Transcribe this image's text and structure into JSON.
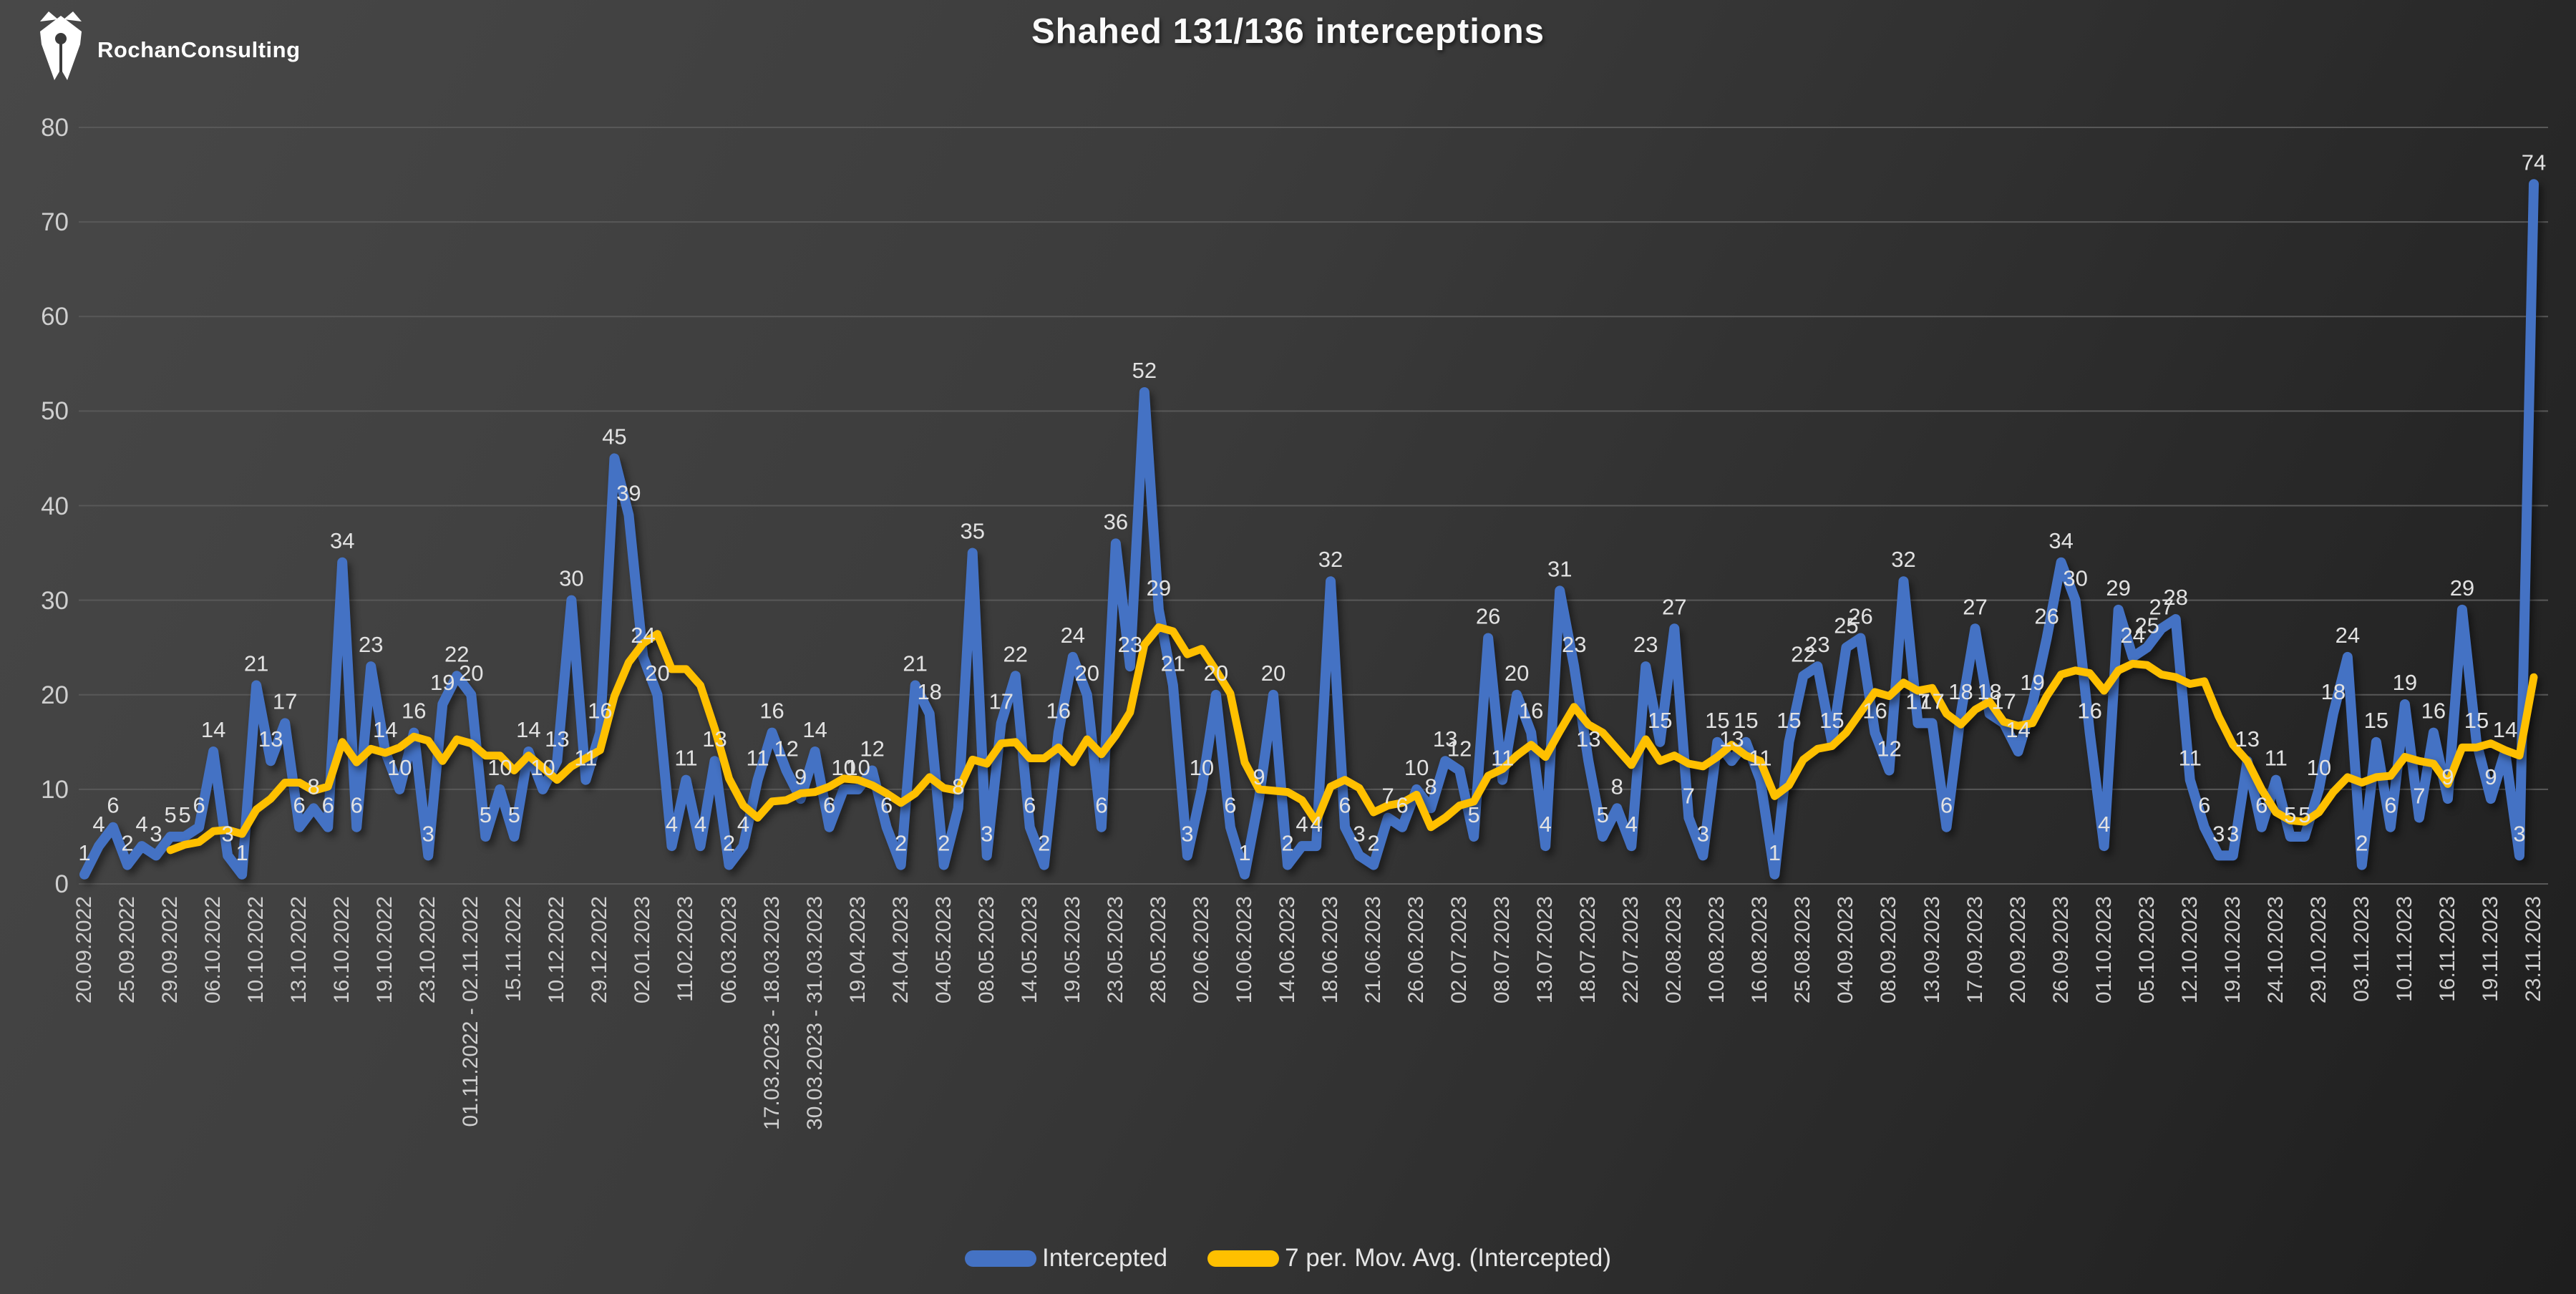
{
  "header": {
    "logo_text": "RochanConsulting",
    "title": "Shahed 131/136 interceptions"
  },
  "legend": [
    {
      "label": "Intercepted",
      "color": "#4472C4"
    },
    {
      "label": "7 per. Mov. Avg. (Intercepted)",
      "color": "#FFC000"
    }
  ],
  "chart_data": {
    "type": "line",
    "title": "Shahed 131/136 interceptions",
    "xlabel": "",
    "ylabel": "",
    "ylim": [
      0,
      80
    ],
    "y_ticks": [
      0,
      10,
      20,
      30,
      40,
      50,
      60,
      70,
      80
    ],
    "grid": true,
    "legend_position": "bottom",
    "x_tick_every": 3,
    "x_tick_labels": [
      "20.09.2022",
      "25.09.2022",
      "29.09.2022",
      "06.10.2022",
      "10.10.2022",
      "13.10.2022",
      "16.10.2022",
      "19.10.2022",
      "23.10.2022",
      "01.11.2022 - 02.11.2022",
      "15.11.2022",
      "10.12.2022",
      "29.12.2022",
      "02.01.2023",
      "11.02.2023",
      "06.03.2023",
      "17.03.2023 - 18.03.2023",
      "30.03.2023 - 31.03.2023",
      "19.04.2023",
      "24.04.2023",
      "04.05.2023",
      "08.05.2023",
      "14.05.2023",
      "19.05.2023",
      "23.05.2023",
      "28.05.2023",
      "02.06.2023",
      "10.06.2023",
      "14.06.2023",
      "18.06.2023",
      "21.06.2023",
      "26.06.2023",
      "02.07.2023",
      "08.07.2023",
      "13.07.2023",
      "18.07.2023",
      "22.07.2023",
      "02.08.2023",
      "10.08.2023",
      "16.08.2023",
      "25.08.2023",
      "04.09.2023",
      "08.09.2023",
      "13.09.2023",
      "17.09.2023",
      "20.09.2023",
      "26.09.2023",
      "01.10.2023",
      "05.10.2023",
      "12.10.2023",
      "19.10.2023",
      "24.10.2023",
      "29.10.2023",
      "03.11.2023",
      "10.11.2023",
      "16.11.2023",
      "19.11.2023",
      "23.11.2023"
    ],
    "series": [
      {
        "name": "Intercepted",
        "color": "#4472C4",
        "data_labels": true,
        "values": [
          1,
          4,
          6,
          2,
          4,
          3,
          5,
          5,
          6,
          14,
          3,
          1,
          21,
          13,
          17,
          6,
          8,
          6,
          34,
          6,
          23,
          14,
          10,
          16,
          3,
          19,
          22,
          20,
          5,
          10,
          5,
          14,
          10,
          13,
          30,
          11,
          16,
          45,
          39,
          24,
          20,
          4,
          11,
          4,
          13,
          2,
          4,
          11,
          16,
          12,
          9,
          14,
          6,
          10,
          10,
          12,
          6,
          2,
          21,
          18,
          2,
          8,
          35,
          3,
          17,
          22,
          6,
          2,
          16,
          24,
          20,
          6,
          36,
          23,
          52,
          29,
          21,
          3,
          10,
          20,
          6,
          1,
          9,
          20,
          2,
          4,
          4,
          32,
          6,
          3,
          2,
          7,
          6,
          10,
          8,
          13,
          12,
          5,
          26,
          11,
          20,
          16,
          4,
          31,
          23,
          13,
          5,
          8,
          4,
          23,
          15,
          27,
          7,
          3,
          15,
          13,
          15,
          11,
          1,
          15,
          22,
          23,
          15,
          25,
          26,
          16,
          12,
          32,
          17,
          17,
          6,
          18,
          27,
          18,
          17,
          14,
          19,
          26,
          34,
          30,
          16,
          4,
          29,
          24,
          25,
          27,
          28,
          11,
          6,
          3,
          3,
          13,
          6,
          11,
          5,
          5,
          10,
          18,
          24,
          2,
          15,
          6,
          19,
          7,
          16,
          9,
          29,
          15,
          9,
          14,
          3,
          74
        ]
      },
      {
        "name": "7 per. Mov. Avg. (Intercepted)",
        "color": "#FFC000",
        "derived": "trailing-7-period-moving-average-of-Intercepted",
        "data_labels": false
      }
    ]
  }
}
